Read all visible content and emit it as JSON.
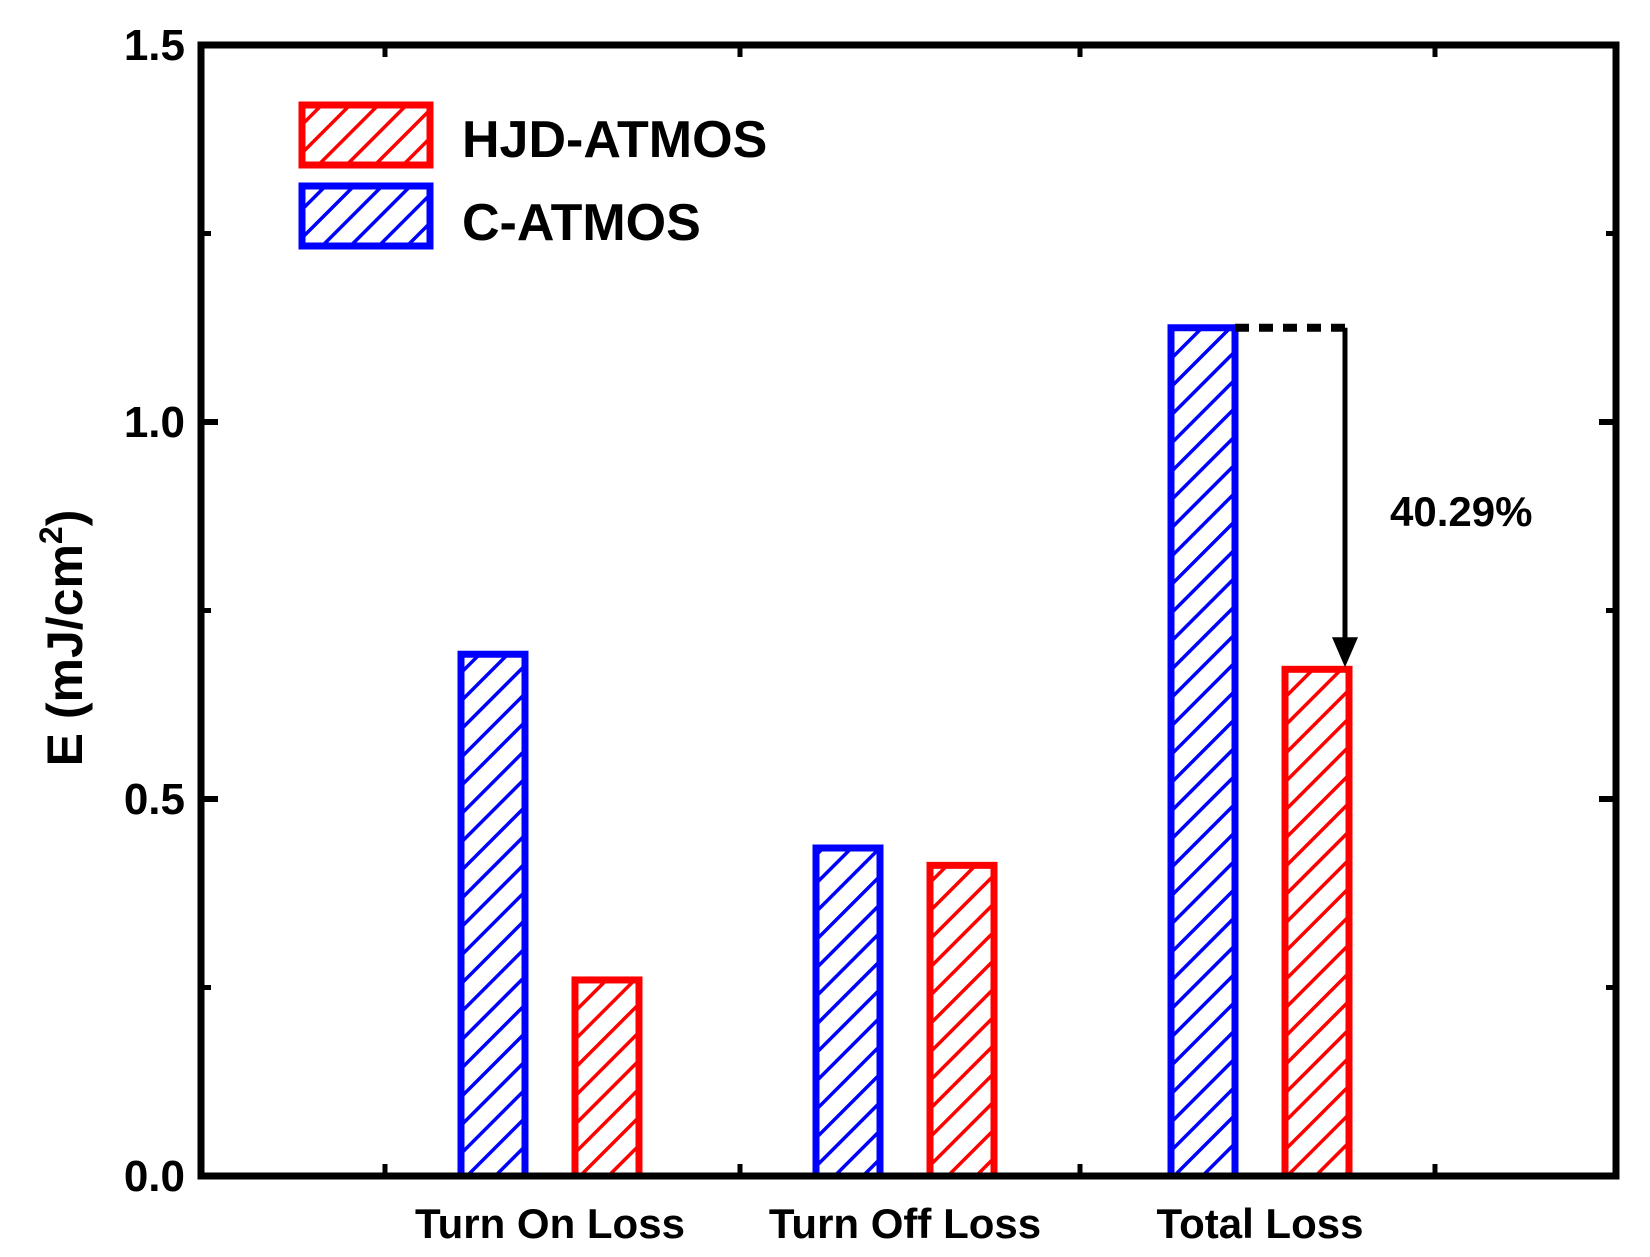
{
  "chart_data": {
    "type": "bar",
    "categories": [
      "Turn On Loss",
      "Turn Off Loss",
      "Total Loss"
    ],
    "series": [
      {
        "name": "C-ATMOS",
        "values": [
          0.692,
          0.435,
          1.125
        ],
        "color": "#0000ff",
        "pattern": "hatched"
      },
      {
        "name": "HJD-ATMOS",
        "values": [
          0.26,
          0.412,
          0.672
        ],
        "color": "#ff0000",
        "pattern": "hatched"
      }
    ],
    "legend_order": [
      "HJD-ATMOS",
      "C-ATMOS"
    ],
    "legend_position": "top-left",
    "title": "",
    "xlabel": "",
    "ylabel": {
      "main": "E (mJ/cm",
      "superscript": "2",
      "close": ")"
    },
    "ylim": [
      0,
      1.5
    ],
    "yticks": [
      "0.0",
      "0.5",
      "1.0",
      "1.5"
    ],
    "grid": false,
    "annotation": {
      "text": "40.29%",
      "category": "Total Loss",
      "from_value": 1.125,
      "to_value": 0.672
    }
  }
}
